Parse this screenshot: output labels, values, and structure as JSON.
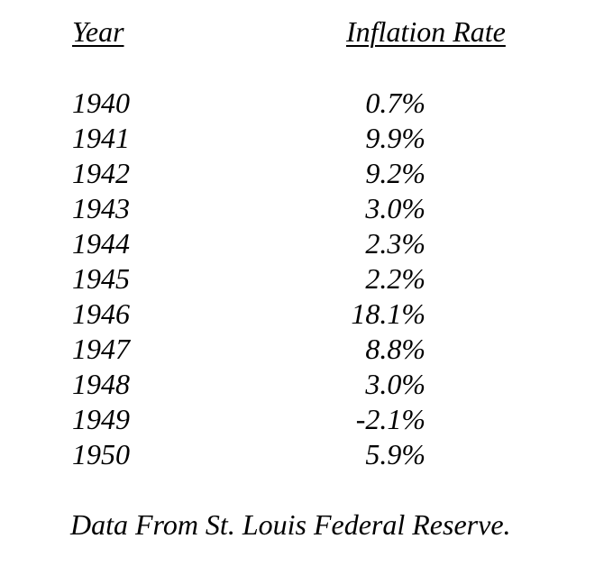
{
  "table": {
    "headers": {
      "year": "Year",
      "rate": "Inflation Rate"
    },
    "rows": [
      {
        "year": "1940",
        "rate": "0.7%"
      },
      {
        "year": "1941",
        "rate": "9.9%"
      },
      {
        "year": "1942",
        "rate": "9.2%"
      },
      {
        "year": "1943",
        "rate": "3.0%"
      },
      {
        "year": "1944",
        "rate": "2.3%"
      },
      {
        "year": "1945",
        "rate": "2.2%"
      },
      {
        "year": "1946",
        "rate": "18.1%"
      },
      {
        "year": "1947",
        "rate": "8.8%"
      },
      {
        "year": "1948",
        "rate": "3.0%"
      },
      {
        "year": "1949",
        "rate": "-2.1%"
      },
      {
        "year": "1950",
        "rate": "5.9%"
      }
    ]
  },
  "footnote": "Data From St. Louis Federal Reserve."
}
